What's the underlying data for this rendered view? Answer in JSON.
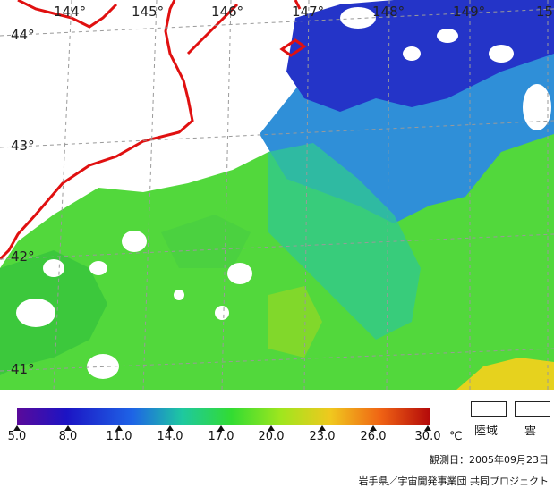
{
  "map": {
    "longitudes": [
      "144°",
      "145°",
      "146°",
      "147°",
      "148°",
      "149°",
      "15"
    ],
    "latitudes": [
      "44°",
      "43°",
      "42°",
      "41°"
    ]
  },
  "legend": {
    "ticks": [
      "5.0",
      "8.0",
      "11.0",
      "14.0",
      "17.0",
      "20.0",
      "23.0",
      "26.0",
      "30.0"
    ],
    "unit": "℃",
    "land_label": "陸域",
    "cloud_label": "雲",
    "colors": [
      "#5a0a9a",
      "#1c14c4",
      "#1e64e6",
      "#1ec8a0",
      "#32dc32",
      "#a0e61e",
      "#f0c81e",
      "#f06414",
      "#b40a0a"
    ]
  },
  "observation_date": "観測日：2005年09月23日",
  "credit": "岩手県／宇宙開発事業団 共同プロジェクト"
}
